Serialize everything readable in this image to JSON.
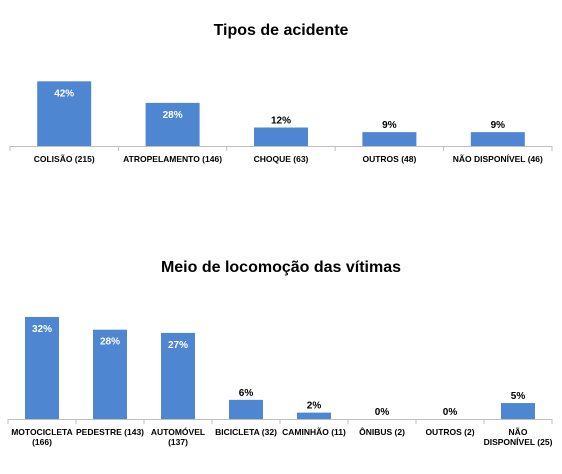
{
  "chart_data": [
    {
      "type": "bar",
      "title": "Tipos de acidente",
      "categories": [
        "COLISÃO (215)",
        "ATROPELAMENTO (146)",
        "CHOQUE (63)",
        "OUTROS (48)",
        "NÃO DISPONÍVEL (46)"
      ],
      "values": [
        42,
        28,
        12,
        9,
        9
      ],
      "data_labels": [
        "42%",
        "28%",
        "12%",
        "9%",
        "9%"
      ],
      "ylim": [
        0,
        50
      ],
      "grid": false,
      "color": "#4f86d2"
    },
    {
      "type": "bar",
      "title": "Meio de locomoção das vítimas",
      "categories": [
        [
          "MOTOCICLETA",
          "(166)"
        ],
        [
          "PEDESTRE (143)"
        ],
        [
          "AUTOMÓVEL",
          "(137)"
        ],
        [
          "BICICLETA (32)"
        ],
        [
          "CAMINHÃO (11)"
        ],
        [
          "ÔNIBUS (2)"
        ],
        [
          "OUTROS (2)"
        ],
        [
          "NÃO",
          "DISPONÍVEL (25)"
        ]
      ],
      "values": [
        32,
        28,
        27,
        6,
        2,
        0,
        0,
        5
      ],
      "data_labels": [
        "32%",
        "28%",
        "27%",
        "6%",
        "2%",
        "0%",
        "0%",
        "5%"
      ],
      "ylim": [
        0,
        37
      ],
      "grid": false,
      "color": "#4f86d2"
    }
  ]
}
